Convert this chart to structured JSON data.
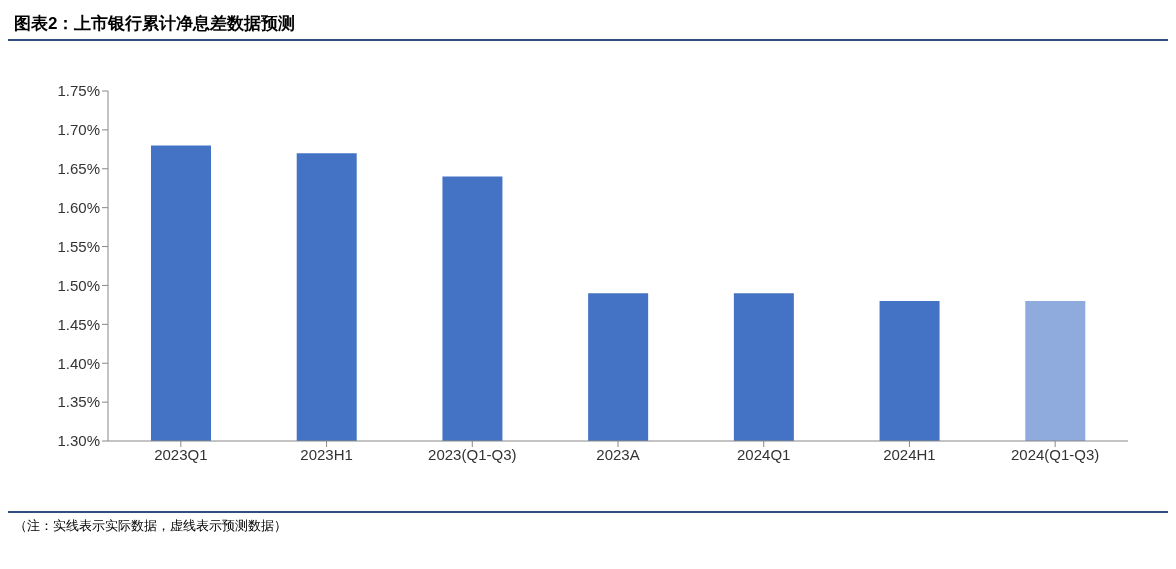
{
  "chart_data": {
    "type": "bar",
    "title": "图表2：上市银行累计净息差数据预测",
    "categories": [
      "2023Q1",
      "2023H1",
      "2023(Q1-Q3)",
      "2023A",
      "2024Q1",
      "2024H1",
      "2024(Q1-Q3)"
    ],
    "values": [
      1.68,
      1.67,
      1.64,
      1.49,
      1.49,
      1.48,
      1.48
    ],
    "colors": [
      "#4472c4",
      "#4472c4",
      "#4472c4",
      "#4472c4",
      "#4472c4",
      "#4472c4",
      "#8faadc"
    ],
    "ylim": [
      1.3,
      1.75
    ],
    "yticks": [
      {
        "value": 1.3,
        "label": "1.30%"
      },
      {
        "value": 1.35,
        "label": "1.35%"
      },
      {
        "value": 1.4,
        "label": "1.40%"
      },
      {
        "value": 1.45,
        "label": "1.45%"
      },
      {
        "value": 1.5,
        "label": "1.50%"
      },
      {
        "value": 1.55,
        "label": "1.55%"
      },
      {
        "value": 1.6,
        "label": "1.60%"
      },
      {
        "value": 1.65,
        "label": "1.65%"
      },
      {
        "value": 1.7,
        "label": "1.70%"
      },
      {
        "value": 1.75,
        "label": "1.75%"
      }
    ],
    "grid": false,
    "legend": false,
    "annotations": [
      "（注：实线表示实际数据，虚线表示预测数据）"
    ]
  }
}
